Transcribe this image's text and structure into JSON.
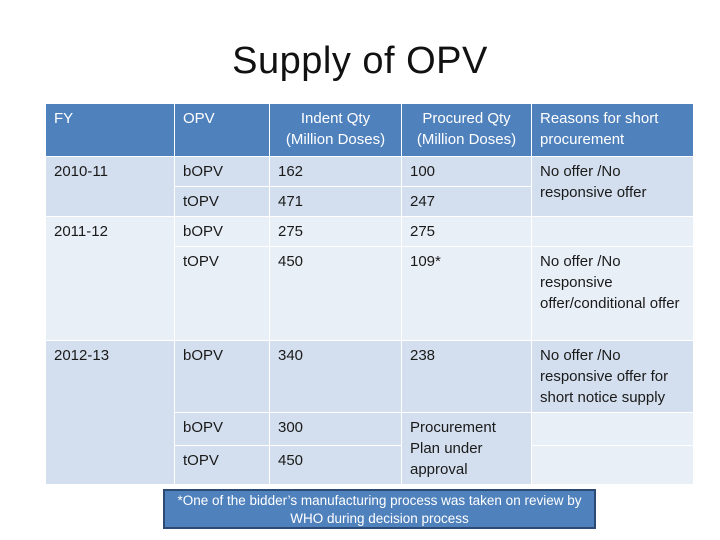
{
  "title": "Supply of OPV",
  "table": {
    "headers": {
      "fy": "FY",
      "opv": "OPV",
      "indent": [
        "Indent Qty",
        "(Million Doses)"
      ],
      "procured": [
        "Procured Qty",
        "(Million Doses)"
      ],
      "reasons": [
        "Reasons for short",
        "procurement"
      ]
    },
    "rows": [
      {
        "fy": "2010-11",
        "opv": "bOPV",
        "indent": "162",
        "procured": "100",
        "reason": "No offer /No responsive offer"
      },
      {
        "fy": "",
        "opv": "tOPV",
        "indent": "471",
        "procured": "247"
      },
      {
        "fy": "2011-12",
        "opv": "bOPV",
        "indent": "275",
        "procured": "275",
        "reason": ""
      },
      {
        "fy": "",
        "opv": "tOPV",
        "indent": "450",
        "procured": "109*",
        "reason": "No offer /No responsive offer/conditional offer"
      },
      {
        "fy": "2012-13",
        "opv": "bOPV",
        "indent": "340",
        "procured": "238",
        "reason": "No offer /No responsive offer for short notice supply"
      },
      {
        "fy": "",
        "opv": "bOPV",
        "indent": "300",
        "procured": "Procurement Plan under approval",
        "reason": ""
      },
      {
        "fy": "",
        "opv": "tOPV",
        "indent": "450",
        "reason": ""
      }
    ]
  },
  "footnote": "*One of the bidder’s manufacturing process was taken on review by WHO during decision process",
  "colors": {
    "header": "#4f81bd",
    "row_dark": "#d3dfee",
    "row_light": "#e9eff7",
    "footnote_border": "#2b4a74"
  }
}
